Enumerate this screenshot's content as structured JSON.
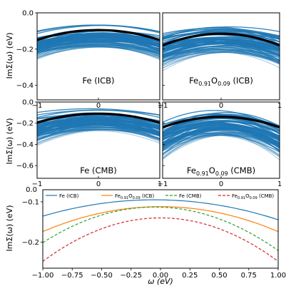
{
  "chart_data": [
    {
      "type": "line",
      "panel_label": "Fe (ICB)",
      "ylabel": "ImΣ(ω) (eV)",
      "xlim": [
        -1,
        1
      ],
      "ylim": [
        -0.48,
        0.0
      ],
      "xticks": [
        "−1",
        "0",
        "1"
      ],
      "yticks": [
        {
          "v": 0.0,
          "label": "0.0"
        },
        {
          "v": -0.2,
          "label": "−0.2"
        },
        {
          "v": -0.4,
          "label": "−0.4"
        }
      ],
      "ensemble": {
        "color": "#1f77b4",
        "top_y": -0.06,
        "bottom_y": -0.19,
        "curvature": 0.05
      },
      "mean": {
        "color": "#000000",
        "peak": -0.095,
        "curvature": 0.055
      }
    },
    {
      "type": "line",
      "panel_label_base": "Fe",
      "panel_label_sub1": "0.91",
      "panel_label_mid": "O",
      "panel_label_sub2": "0.09",
      "panel_label_tail": " (ICB)",
      "xlim": [
        -1,
        1
      ],
      "ylim": [
        -0.48,
        0.0
      ],
      "xticks": [
        "−1",
        "0",
        "1"
      ],
      "ensemble": {
        "color": "#1f77b4",
        "top_y": -0.07,
        "bottom_y": -0.22,
        "curvature": 0.06
      },
      "mean": {
        "color": "#000000",
        "peak": -0.115,
        "curvature": 0.065
      }
    },
    {
      "type": "line",
      "panel_label": "Fe (CMB)",
      "ylabel": "ImΣ(ω) (eV)",
      "xlim": [
        -1,
        1
      ],
      "ylim": [
        -0.72,
        0.0
      ],
      "xticks": [
        "−1",
        "0",
        "1"
      ],
      "yticks": [
        {
          "v": 0.0,
          "label": "0.0"
        },
        {
          "v": -0.2,
          "label": "−0.2"
        },
        {
          "v": -0.4,
          "label": "−0.4"
        },
        {
          "v": -0.6,
          "label": "−0.6"
        }
      ],
      "ensemble": {
        "color": "#1f77b4",
        "top_y": -0.06,
        "bottom_y": -0.27,
        "curvature": 0.09
      },
      "mean": {
        "color": "#000000",
        "peak": -0.11,
        "curvature": 0.085
      }
    },
    {
      "type": "line",
      "panel_label_base": "Fe",
      "panel_label_sub1": "0.91",
      "panel_label_mid": "O",
      "panel_label_sub2": "0.09",
      "panel_label_tail": " (CMB)",
      "xlim": [
        -1,
        1
      ],
      "ylim": [
        -0.72,
        0.0
      ],
      "xticks": [
        "−1",
        "0",
        "1"
      ],
      "ensemble": {
        "color": "#1f77b4",
        "top_y": -0.07,
        "bottom_y": -0.32,
        "curvature": 0.15
      },
      "mean": {
        "color": "#000000",
        "peak": -0.14,
        "curvature": 0.1
      }
    },
    {
      "type": "line",
      "xlabel": "ω (eV)",
      "ylabel": "ImΣ(ω) (eV)",
      "xlim": [
        -1.0,
        1.0
      ],
      "ylim": [
        -0.265,
        -0.07
      ],
      "x_ticks": [
        -1.0,
        -0.75,
        -0.5,
        -0.25,
        0.0,
        0.25,
        0.5,
        0.75,
        1.0
      ],
      "x_tick_labels": [
        "−1.00",
        "−0.75",
        "−0.50",
        "−0.25",
        "0.00",
        "0.25",
        "0.50",
        "0.75",
        "1.00"
      ],
      "y_ticks": [
        -0.1,
        -0.2
      ],
      "y_tick_labels": [
        "−0.1",
        "−0.2"
      ],
      "top_tick_label": "0.0",
      "legend_placement": "top",
      "series": [
        {
          "name": "Fe (ICB)",
          "color": "#1f77b4",
          "dash": "solid",
          "peak_x": -0.05,
          "peak_y": -0.095,
          "curvature": 0.045
        },
        {
          "name_base": "Fe",
          "name_sub1": "0.91",
          "name_mid": "O",
          "name_sub2": "0.09",
          "name_tail": " (ICB)",
          "color": "#ff7f0e",
          "dash": "solid",
          "peak_x": 0.0,
          "peak_y": -0.112,
          "curvature": 0.062
        },
        {
          "name": "Fe (CMB)",
          "color": "#2ca02c",
          "dash": "dashed",
          "peak_x": -0.05,
          "peak_y": -0.113,
          "curvature": 0.098
        },
        {
          "name_base": "Fe",
          "name_sub1": "0.91",
          "name_mid": "O",
          "name_sub2": "0.09",
          "name_tail": " (CMB)",
          "color": "#d62728",
          "dash": "dashed",
          "peak_x": 0.0,
          "peak_y": -0.14,
          "curvature": 0.108
        }
      ]
    }
  ]
}
